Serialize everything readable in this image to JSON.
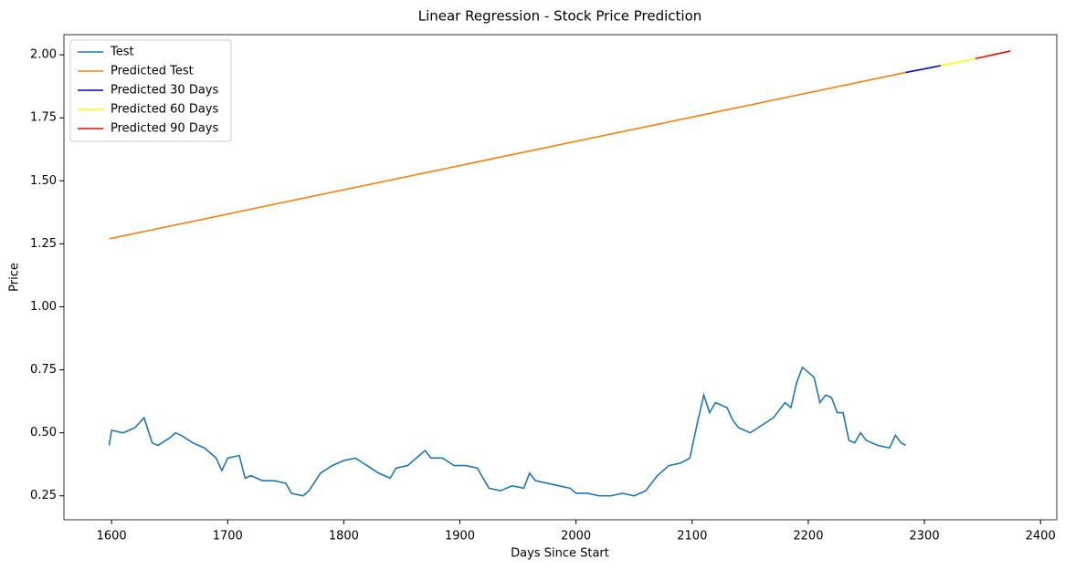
{
  "chart_data": {
    "type": "line",
    "title": "Linear Regression - Stock Price Prediction",
    "x_label": "Days Since Start",
    "y_label": "Price",
    "xlim": [
      1559,
      2414
    ],
    "ylim": [
      0.155,
      2.08
    ],
    "xticks": [
      1600,
      1700,
      1800,
      1900,
      2000,
      2100,
      2200,
      2300,
      2400
    ],
    "yticks": [
      0.25,
      {
        "value": 0.5,
        "label": "0.50"
      },
      0.75,
      {
        "value": 1.0,
        "label": "1.00"
      },
      1.25,
      {
        "value": 1.5,
        "label": "1.50"
      },
      1.75,
      {
        "value": 2.0,
        "label": "2.00"
      }
    ],
    "legend": "upper left",
    "series": [
      {
        "name": "Test",
        "color": "#1f77b4",
        "x": [
          1598,
          1600,
          1610,
          1620,
          1628,
          1635,
          1640,
          1650,
          1655,
          1660,
          1670,
          1680,
          1690,
          1695,
          1700,
          1710,
          1715,
          1720,
          1730,
          1740,
          1750,
          1755,
          1765,
          1770,
          1780,
          1790,
          1800,
          1810,
          1820,
          1830,
          1840,
          1845,
          1855,
          1860,
          1870,
          1875,
          1885,
          1895,
          1905,
          1915,
          1925,
          1935,
          1945,
          1955,
          1960,
          1965,
          1975,
          1985,
          1995,
          2000,
          2010,
          2020,
          2030,
          2040,
          2050,
          2060,
          2070,
          2080,
          2090,
          2098,
          2105,
          2110,
          2115,
          2120,
          2130,
          2135,
          2140,
          2150,
          2160,
          2170,
          2180,
          2185,
          2190,
          2195,
          2200,
          2205,
          2210,
          2215,
          2220,
          2225,
          2230,
          2235,
          2240,
          2245,
          2250,
          2260,
          2270,
          2275,
          2280,
          2284
        ],
        "values": [
          0.45,
          0.51,
          0.5,
          0.52,
          0.56,
          0.46,
          0.45,
          0.48,
          0.5,
          0.49,
          0.46,
          0.44,
          0.4,
          0.35,
          0.4,
          0.41,
          0.32,
          0.33,
          0.31,
          0.31,
          0.3,
          0.26,
          0.25,
          0.27,
          0.34,
          0.37,
          0.39,
          0.4,
          0.37,
          0.34,
          0.32,
          0.36,
          0.37,
          0.39,
          0.43,
          0.4,
          0.4,
          0.37,
          0.37,
          0.36,
          0.28,
          0.27,
          0.29,
          0.28,
          0.34,
          0.31,
          0.3,
          0.29,
          0.28,
          0.26,
          0.26,
          0.25,
          0.25,
          0.26,
          0.25,
          0.27,
          0.33,
          0.37,
          0.38,
          0.4,
          0.55,
          0.65,
          0.58,
          0.62,
          0.6,
          0.55,
          0.52,
          0.5,
          0.53,
          0.56,
          0.62,
          0.6,
          0.7,
          0.76,
          0.74,
          0.72,
          0.62,
          0.65,
          0.64,
          0.58,
          0.58,
          0.47,
          0.46,
          0.5,
          0.47,
          0.45,
          0.44,
          0.49,
          0.46,
          0.45
        ]
      },
      {
        "name": "Predicted Test",
        "color": "#ff7f0e",
        "x": [
          1598,
          2284
        ],
        "values": [
          1.27,
          1.93
        ]
      },
      {
        "name": "Predicted 30 Days",
        "color": "#0000cd",
        "x": [
          2284,
          2314
        ],
        "values": [
          1.93,
          1.957
        ]
      },
      {
        "name": "Predicted 60 Days",
        "color": "#ffff00",
        "x": [
          2314,
          2344
        ],
        "values": [
          1.957,
          1.985
        ]
      },
      {
        "name": "Predicted 90 Days",
        "color": "#ff0000",
        "x": [
          2344,
          2374
        ],
        "values": [
          1.985,
          2.015
        ]
      }
    ]
  }
}
